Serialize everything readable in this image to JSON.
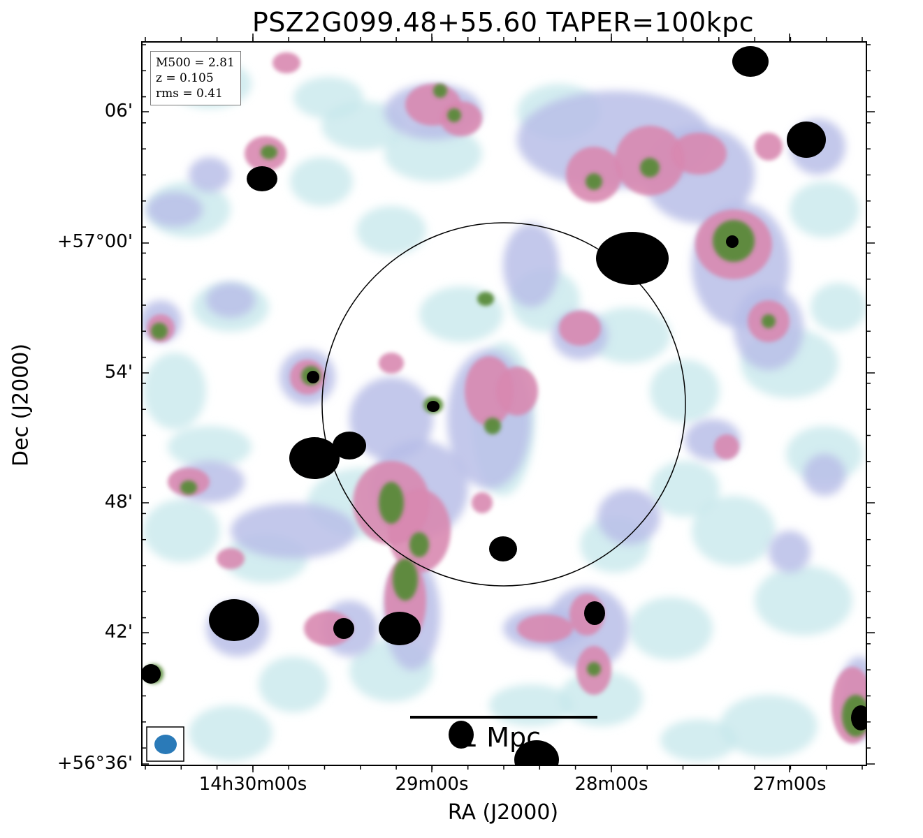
{
  "figure": {
    "title": "PSZ2G099.48+55.60 TAPER=100kpc",
    "xlabel": "RA (J2000)",
    "ylabel": "Dec (J2000)",
    "ra_ticks": [
      "14h30m00s",
      "29m00s",
      "28m00s",
      "27m00s"
    ],
    "dec_ticks": [
      "06'",
      "+57°00'",
      "54'",
      "48'",
      "42'",
      "+56°36'"
    ]
  },
  "info": {
    "m500": "M500 = 2.81",
    "z": "z = 0.105",
    "rms": "rms = 0.41"
  },
  "scalebar": {
    "label": "1 Mpc"
  },
  "colors": {
    "faint": "#c8e8ec",
    "low": "#b8bee8",
    "mid": "#d888b0",
    "high": "#5a8a3a",
    "peak": "#000000"
  }
}
